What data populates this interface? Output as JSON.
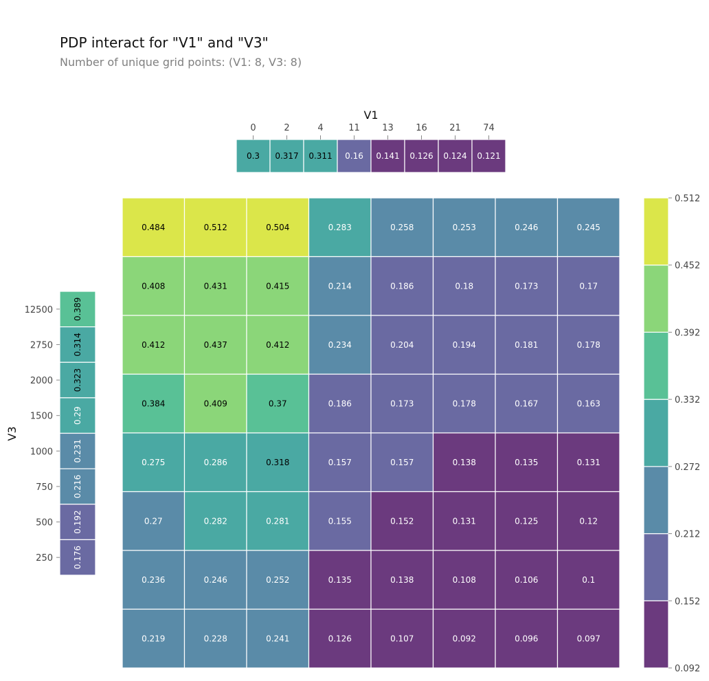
{
  "title": "PDP interact for \"V1\" and \"V3\"",
  "subtitle": "Number of unique grid points: (V1: 8, V3: 8)",
  "chart_data": [
    {
      "type": "heatmap",
      "name": "interact",
      "x_categories": [
        "0",
        "2",
        "4",
        "11",
        "13",
        "16",
        "21",
        "74"
      ],
      "y_categories": [
        "12500",
        "2750",
        "2000",
        "1500",
        "1000",
        "750",
        "500",
        "250"
      ],
      "values": [
        [
          0.484,
          0.512,
          0.504,
          0.283,
          0.258,
          0.253,
          0.246,
          0.245
        ],
        [
          0.408,
          0.431,
          0.415,
          0.214,
          0.186,
          0.18,
          0.173,
          0.17
        ],
        [
          0.412,
          0.437,
          0.412,
          0.234,
          0.204,
          0.194,
          0.181,
          0.178
        ],
        [
          0.384,
          0.409,
          0.37,
          0.186,
          0.173,
          0.178,
          0.167,
          0.163
        ],
        [
          0.275,
          0.286,
          0.318,
          0.157,
          0.157,
          0.138,
          0.135,
          0.131
        ],
        [
          0.27,
          0.282,
          0.281,
          0.155,
          0.152,
          0.131,
          0.125,
          0.12
        ],
        [
          0.236,
          0.246,
          0.252,
          0.135,
          0.138,
          0.108,
          0.106,
          0.1
        ],
        [
          0.219,
          0.228,
          0.241,
          0.126,
          0.107,
          0.092,
          0.096,
          0.097
        ]
      ]
    },
    {
      "type": "heatmap",
      "name": "V1 marginal",
      "xlabel": "V1",
      "categories": [
        "0",
        "2",
        "4",
        "11",
        "13",
        "16",
        "21",
        "74"
      ],
      "values": [
        0.3,
        0.317,
        0.311,
        0.16,
        0.141,
        0.126,
        0.124,
        0.121
      ]
    },
    {
      "type": "heatmap",
      "name": "V3 marginal",
      "ylabel": "V3",
      "categories": [
        "12500",
        "2750",
        "2000",
        "1500",
        "1000",
        "750",
        "500",
        "250"
      ],
      "values": [
        0.389,
        0.314,
        0.323,
        0.29,
        0.231,
        0.216,
        0.192,
        0.176
      ]
    },
    {
      "type": "colorbar",
      "ticks": [
        "0.512",
        "0.452",
        "0.392",
        "0.332",
        "0.272",
        "0.212",
        "0.152",
        "0.092"
      ],
      "range": [
        0.092,
        0.512
      ]
    }
  ],
  "colors": [
    "#6b3a7e",
    "#6a6aa2",
    "#5a8ba8",
    "#4aa9a3",
    "#59c196",
    "#8bd679",
    "#dbe64a"
  ]
}
